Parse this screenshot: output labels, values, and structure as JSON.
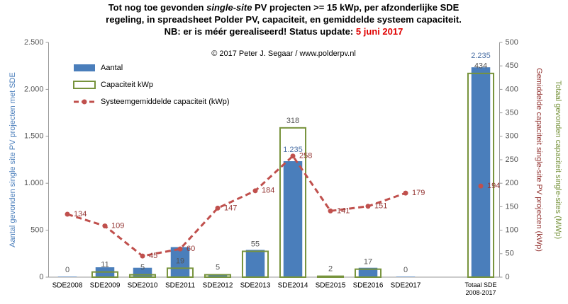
{
  "chart_data": {
    "type": "bar",
    "title": [
      [
        "Tot nog toe gevonden ",
        "single-site",
        " PV projecten >= 15 kWp, per afzonderlijke  SDE"
      ],
      [
        "regeling, in spreadsheet Polder PV, capaciteit, en gemiddelde systeem capaciteit."
      ],
      [
        "NB: er is méér gerealiseerd! Status update: ",
        "5 juni 2017"
      ]
    ],
    "title_highlight_color": "#e00000",
    "annotation": "© 2017 Peter J. Segaar / www.polderpv.nl",
    "ylabel": "Aantal gevonden single site PV projecten met SDE",
    "ylabel_color": "#4a7ebb",
    "y2labels": [
      "Gemiddelde capaciteit single-site PV projecten (kWp)",
      "Totaal gevonden capaciteit single-sites (MWp)"
    ],
    "y2label_colors": [
      "#953735",
      "#77933c"
    ],
    "categories": [
      "SDE2008",
      "SDE2009",
      "SDE2010",
      "SDE2011",
      "SDE2012",
      "SDE2013",
      "SDE2014",
      "SDE2015",
      "SDE2016",
      "SDE2017",
      null,
      "Totaal SDE 2008-2017"
    ],
    "series": [
      {
        "name": "Aantal",
        "type": "bar",
        "color": "#4a7ebb",
        "axis": "y",
        "values": [
          5,
          105,
          100,
          320,
          25,
          290,
          1235,
          10,
          100,
          5,
          null,
          2235
        ],
        "value_labels": [
          null,
          null,
          null,
          null,
          null,
          null,
          "1.235",
          null,
          null,
          null,
          null,
          "2.235"
        ]
      },
      {
        "name": "Capaciteit kWp",
        "type": "bar",
        "hollow": true,
        "color": "#77933c",
        "axis": "y2",
        "values": [
          0,
          11,
          5,
          19,
          5,
          55,
          318,
          2,
          17,
          0,
          null,
          434
        ]
      },
      {
        "name": "Systeemgemiddelde capaciteit (kWp)",
        "type": "line",
        "dashed": true,
        "color": "#c0504d",
        "label_color": "#953735",
        "axis": "y2",
        "values": [
          134,
          109,
          45,
          60,
          147,
          184,
          258,
          141,
          151,
          179,
          null,
          194
        ]
      }
    ],
    "ylim": [
      0,
      2500
    ],
    "yticks": [
      0,
      500,
      {
        "value": 1000,
        "label": "1.000"
      },
      {
        "value": 1500,
        "label": "1.500"
      },
      {
        "value": 2000,
        "label": "2.000"
      },
      {
        "value": 2500,
        "label": "2.500"
      }
    ],
    "y2lim": [
      0,
      500
    ],
    "y2ticks": [
      0,
      50,
      100,
      150,
      200,
      250,
      300,
      350,
      400,
      450,
      500
    ],
    "grid": false
  }
}
